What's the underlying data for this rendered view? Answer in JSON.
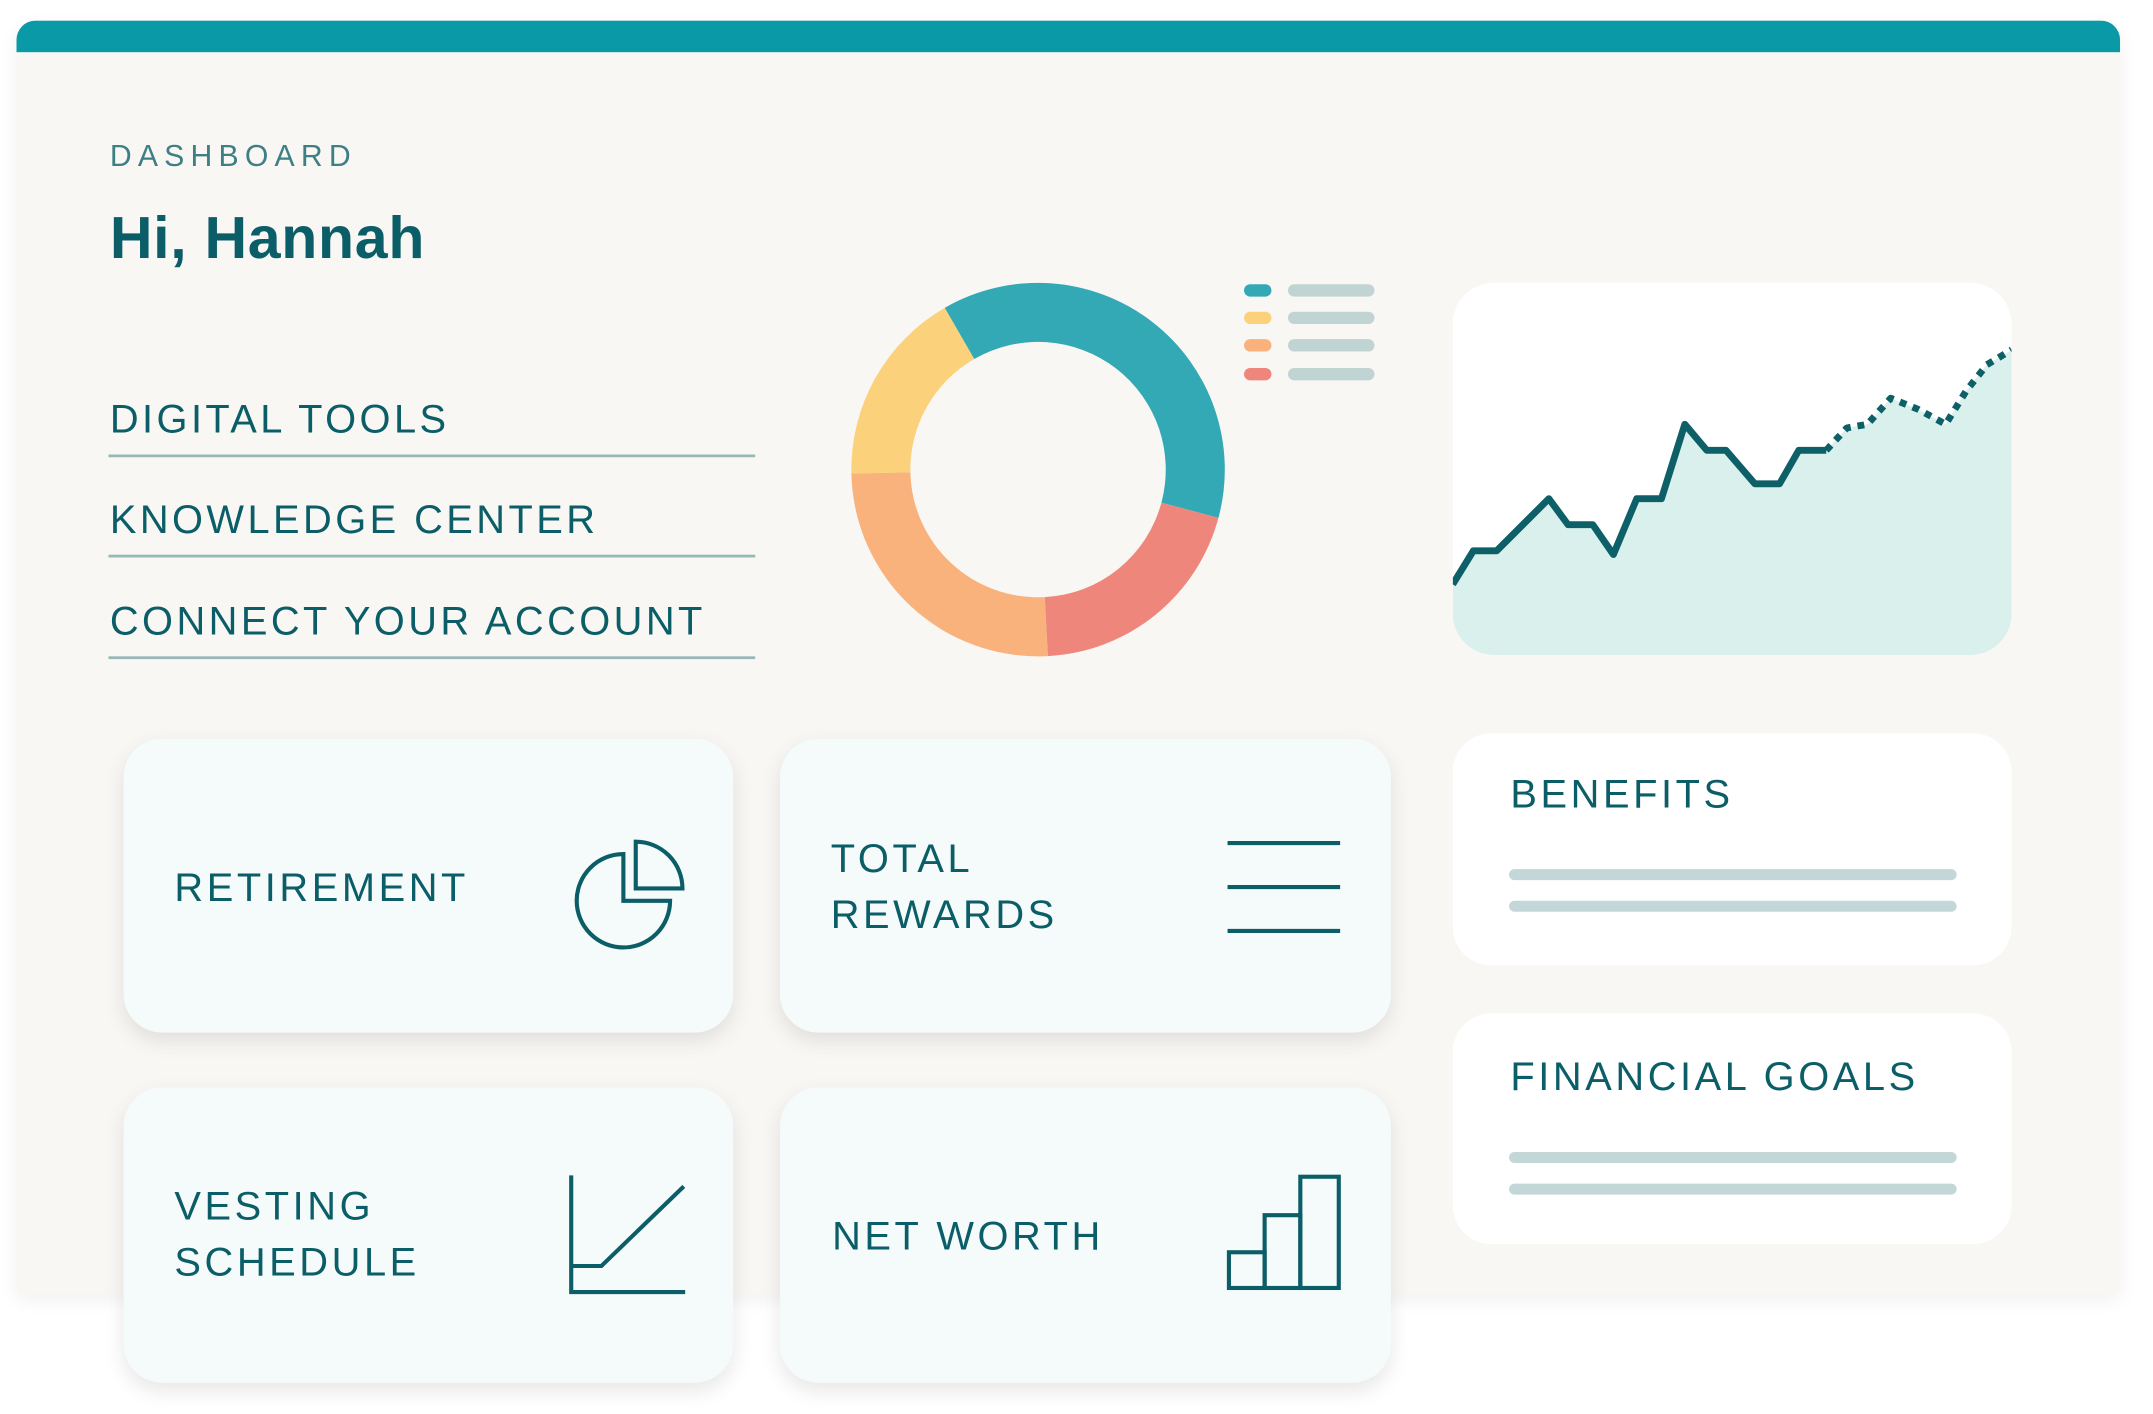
{
  "header": {
    "eyebrow": "DASHBOARD",
    "greeting": "Hi, Hannah"
  },
  "nav": {
    "items": [
      {
        "label": "DIGITAL TOOLS"
      },
      {
        "label": "KNOWLEDGE CENTER"
      },
      {
        "label": "CONNECT YOUR ACCOUNT"
      }
    ]
  },
  "tiles": [
    {
      "label": "RETIREMENT",
      "icon": "pie-chart-icon"
    },
    {
      "label": "TOTAL\nREWARDS",
      "icon": "lines-icon"
    },
    {
      "label": "VESTING\nSCHEDULE",
      "icon": "line-graph-icon"
    },
    {
      "label": "NET WORTH",
      "icon": "bar-chart-icon"
    }
  ],
  "side_cards": [
    {
      "label": "BENEFITS"
    },
    {
      "label": "FINANCIAL GOALS"
    }
  ],
  "colors": {
    "brand_bar": "#0a99a6",
    "text": "#0b5e67",
    "background": "#f8f7f4",
    "area_fill": "#daf0ec",
    "line": "#0d5f68"
  },
  "chart_data": [
    {
      "type": "pie",
      "donut": true,
      "values": [
        37.5,
        20,
        25.5,
        17
      ],
      "colors": [
        "#33a9b5",
        "#ef867b",
        "#f9b27b",
        "#fbd27b"
      ],
      "legend_colors": [
        "#33a9b5",
        "#fbd27b",
        "#f9b27b",
        "#ef867b"
      ],
      "legend": "right"
    },
    {
      "type": "area",
      "ylim": [
        0,
        100
      ],
      "actual": [
        19,
        28,
        28,
        42,
        35,
        35,
        27,
        42,
        42,
        62,
        55,
        55,
        46,
        46,
        55,
        55
      ],
      "projected": [
        55,
        61,
        62,
        69,
        66,
        62,
        71,
        78,
        82
      ],
      "grid": false
    }
  ]
}
